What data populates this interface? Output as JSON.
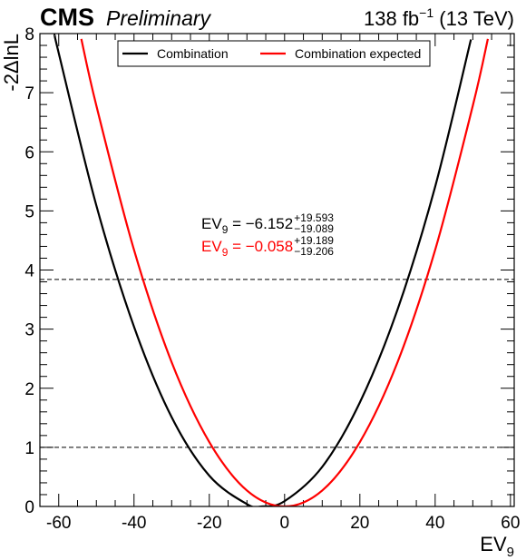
{
  "chart_data": {
    "type": "line",
    "title": "CMS",
    "subtitle": "Preliminary",
    "lumi": {
      "text": "138 fb",
      "sup": "−1",
      "energy": " (13 TeV)"
    },
    "xlabel": {
      "text": "EV",
      "sub": "9"
    },
    "ylabel": "-2ΔlnL",
    "xlim": [
      -65,
      61
    ],
    "ylim": [
      0,
      8
    ],
    "xticks": [
      -60,
      -40,
      -20,
      0,
      20,
      40,
      60
    ],
    "yticks": [
      0,
      1,
      2,
      3,
      4,
      5,
      6,
      7,
      8
    ],
    "hlines": [
      1,
      3.84
    ],
    "legend": "top",
    "series": [
      {
        "name": "Combination",
        "color": "#000000",
        "x": [
          -61,
          -60,
          -50,
          -40,
          -30,
          -20,
          -10,
          -6,
          0,
          10,
          20,
          30,
          40,
          49.5
        ],
        "values": [
          7.96,
          7.67,
          5.09,
          3.04,
          1.51,
          0.52,
          0.04,
          0,
          0.09,
          0.67,
          1.76,
          3.33,
          5.41,
          7.9
        ]
      },
      {
        "name": "Combination expected",
        "color": "#ff0000",
        "x": [
          -54,
          -50,
          -40,
          -30,
          -20,
          -10,
          0,
          10,
          20,
          30,
          40,
          50,
          54
        ],
        "values": [
          7.91,
          6.78,
          4.34,
          2.44,
          1.09,
          0.27,
          0,
          0.27,
          1.09,
          2.44,
          4.34,
          6.78,
          7.91
        ]
      }
    ],
    "annotations": [
      {
        "var": "EV",
        "sub": "9",
        "text": " = −6.152",
        "up": "+19.593",
        "down": "−19.089",
        "color": "#000000"
      },
      {
        "var": "EV",
        "sub": "9",
        "text": " = −0.058",
        "up": "+19.189",
        "down": "−19.206",
        "color": "#ff0000"
      }
    ]
  }
}
